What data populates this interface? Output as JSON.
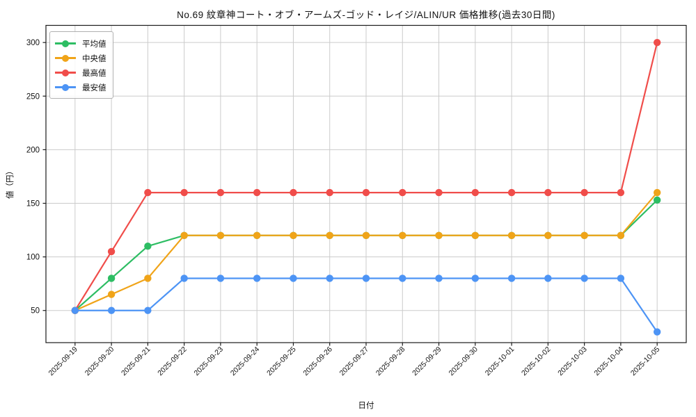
{
  "title": "No.69 紋章神コート・オブ・アームズ-ゴッド・レイジ/ALIN/UR 価格推移(過去30日間)",
  "chart_data": {
    "type": "line",
    "title": "No.69 紋章神コート・オブ・アームズ-ゴッド・レイジ/ALIN/UR 価格推移(過去30日間)",
    "xlabel": "日付",
    "ylabel": "値（円）",
    "categories": [
      "2025-09-19",
      "2025-09-20",
      "2025-09-21",
      "2025-09-22",
      "2025-09-23",
      "2025-09-24",
      "2025-09-25",
      "2025-09-26",
      "2025-09-27",
      "2025-09-28",
      "2025-09-29",
      "2025-09-30",
      "2025-10-01",
      "2025-10-02",
      "2025-10-03",
      "2025-10-04",
      "2025-10-05"
    ],
    "series": [
      {
        "name": "平均値",
        "color": "#2dbd63",
        "values": [
          50,
          80,
          110,
          120,
          120,
          120,
          120,
          120,
          120,
          120,
          120,
          120,
          120,
          120,
          120,
          120,
          153
        ]
      },
      {
        "name": "中央値",
        "color": "#f0a419",
        "values": [
          50,
          65,
          80,
          120,
          120,
          120,
          120,
          120,
          120,
          120,
          120,
          120,
          120,
          120,
          120,
          120,
          160
        ]
      },
      {
        "name": "最高値",
        "color": "#f04d4a",
        "values": [
          50,
          105,
          160,
          160,
          160,
          160,
          160,
          160,
          160,
          160,
          160,
          160,
          160,
          160,
          160,
          160,
          300
        ]
      },
      {
        "name": "最安値",
        "color": "#4d94f5",
        "values": [
          50,
          50,
          50,
          80,
          80,
          80,
          80,
          80,
          80,
          80,
          80,
          80,
          80,
          80,
          80,
          80,
          30
        ]
      }
    ],
    "yticks": [
      50,
      100,
      150,
      200,
      250,
      300
    ],
    "ylim": [
      20,
      316
    ],
    "xlim": [
      -0.8,
      16.8
    ],
    "grid": true,
    "grid_color": "#cbcbcb",
    "spine_color": "#1a1a1a",
    "tick_label_color": "#111111",
    "background": "#ffffff",
    "legend_position": "upper left"
  }
}
